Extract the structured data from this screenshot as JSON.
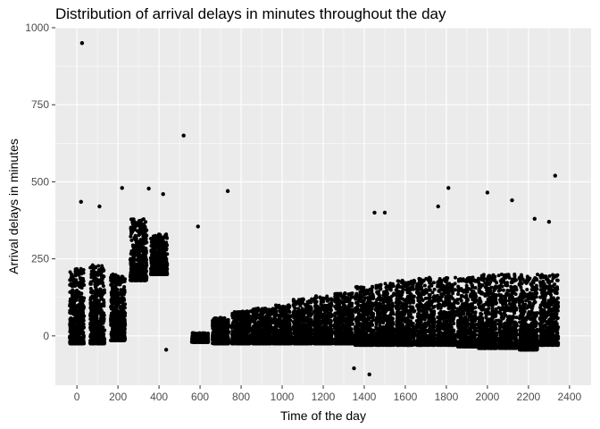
{
  "chart_data": {
    "type": "scatter",
    "title": "Distribution of arrival delays in minutes throughout the day",
    "xlabel": "Time of the day",
    "ylabel": "Arrival delays in minutes",
    "xlim": [
      -105,
      2505
    ],
    "ylim": [
      -160,
      1000
    ],
    "x_ticks": [
      0,
      200,
      400,
      600,
      800,
      1000,
      1200,
      1400,
      1600,
      1800,
      2000,
      2200,
      2400
    ],
    "y_ticks": [
      0,
      250,
      500,
      750,
      1000
    ],
    "grid": true,
    "legend": "none",
    "point_color": "#000000",
    "panel_background": "#ebebeb",
    "grid_color": "#ffffff",
    "hour_clusters": [
      {
        "x": 0,
        "width": 35,
        "y_low": -25,
        "y_high": 220
      },
      {
        "x": 100,
        "width": 35,
        "y_low": -25,
        "y_high": 230
      },
      {
        "x": 200,
        "width": 35,
        "y_low": -15,
        "y_high": 200
      },
      {
        "x": 300,
        "width": 40,
        "y_low": 180,
        "y_high": 380
      },
      {
        "x": 400,
        "width": 40,
        "y_low": 200,
        "y_high": 330
      },
      {
        "x": 600,
        "width": 40,
        "y_low": -20,
        "y_high": 10
      },
      {
        "x": 700,
        "width": 40,
        "y_low": -25,
        "y_high": 60
      },
      {
        "x": 800,
        "width": 45,
        "y_low": -25,
        "y_high": 80
      },
      {
        "x": 900,
        "width": 45,
        "y_low": -25,
        "y_high": 90
      },
      {
        "x": 1000,
        "width": 45,
        "y_low": -25,
        "y_high": 100
      },
      {
        "x": 1100,
        "width": 45,
        "y_low": -25,
        "y_high": 120
      },
      {
        "x": 1200,
        "width": 45,
        "y_low": -25,
        "y_high": 130
      },
      {
        "x": 1300,
        "width": 45,
        "y_low": -25,
        "y_high": 140
      },
      {
        "x": 1400,
        "width": 45,
        "y_low": -30,
        "y_high": 160
      },
      {
        "x": 1500,
        "width": 45,
        "y_low": -30,
        "y_high": 170
      },
      {
        "x": 1600,
        "width": 45,
        "y_low": -30,
        "y_high": 180
      },
      {
        "x": 1700,
        "width": 45,
        "y_low": -30,
        "y_high": 190
      },
      {
        "x": 1800,
        "width": 45,
        "y_low": -30,
        "y_high": 190
      },
      {
        "x": 1900,
        "width": 45,
        "y_low": -35,
        "y_high": 190
      },
      {
        "x": 2000,
        "width": 45,
        "y_low": -40,
        "y_high": 200
      },
      {
        "x": 2100,
        "width": 45,
        "y_low": -40,
        "y_high": 200
      },
      {
        "x": 2200,
        "width": 45,
        "y_low": -45,
        "y_high": 200
      },
      {
        "x": 2300,
        "width": 45,
        "y_low": -30,
        "y_high": 200
      }
    ],
    "outliers": [
      {
        "x": 25,
        "y": 950
      },
      {
        "x": 520,
        "y": 650
      },
      {
        "x": 735,
        "y": 470
      },
      {
        "x": 2330,
        "y": 520
      },
      {
        "x": 220,
        "y": 480
      },
      {
        "x": 350,
        "y": 478
      },
      {
        "x": 420,
        "y": 460
      },
      {
        "x": 2000,
        "y": 465
      },
      {
        "x": 1810,
        "y": 480
      },
      {
        "x": 1760,
        "y": 420
      },
      {
        "x": 2120,
        "y": 440
      },
      {
        "x": 20,
        "y": 435
      },
      {
        "x": 110,
        "y": 420
      },
      {
        "x": 590,
        "y": 355
      },
      {
        "x": 1450,
        "y": 400
      },
      {
        "x": 1500,
        "y": 400
      },
      {
        "x": 1350,
        "y": -105
      },
      {
        "x": 1425,
        "y": -125
      },
      {
        "x": 435,
        "y": -45
      },
      {
        "x": 2230,
        "y": 380
      },
      {
        "x": 2300,
        "y": 370
      }
    ]
  }
}
